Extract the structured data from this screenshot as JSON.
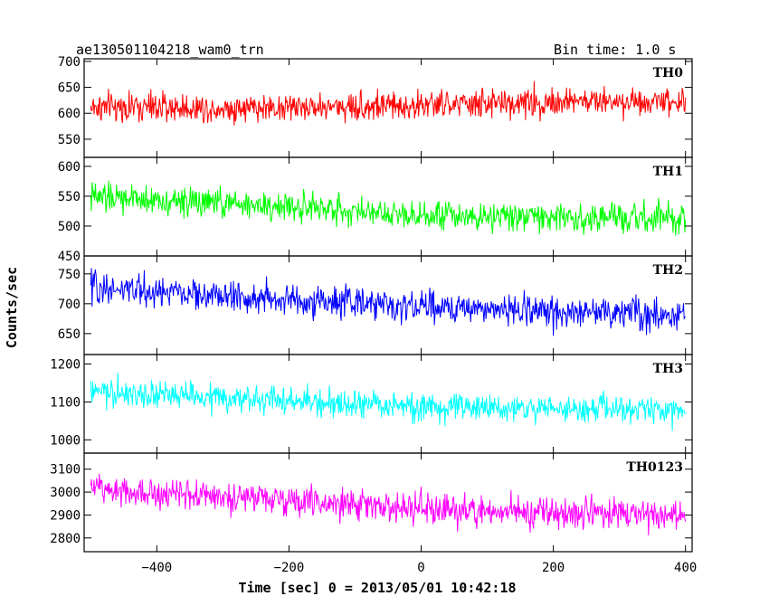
{
  "header": {
    "left_title": "ae130501104218_wam0_trn",
    "right_title": "Bin time: 1.0 s"
  },
  "chart_data": {
    "type": "line",
    "xlabel": "Time [sec] 0 = 2013/05/01 10:42:18",
    "ylabel": "Counts/sec",
    "xlim": [
      -510,
      410
    ],
    "xticks": [
      -400,
      -200,
      0,
      200,
      400
    ],
    "bin_time_s": 1.0,
    "panels": [
      {
        "name": "TH0",
        "color": "#ff0000",
        "ylim": [
          515,
          705
        ],
        "yticks": [
          550,
          600,
          650,
          700
        ],
        "trend": [
          [
            -500,
            612
          ],
          [
            -300,
            610
          ],
          [
            0,
            615
          ],
          [
            200,
            622
          ],
          [
            400,
            625
          ]
        ],
        "spread": 32
      },
      {
        "name": "TH1",
        "color": "#00ff00",
        "ylim": [
          450,
          615
        ],
        "yticks": [
          450,
          500,
          550,
          600
        ],
        "trend": [
          [
            -500,
            548
          ],
          [
            -300,
            538
          ],
          [
            0,
            520
          ],
          [
            200,
            515
          ],
          [
            400,
            510
          ]
        ],
        "spread": 28
      },
      {
        "name": "TH2",
        "color": "#0000ff",
        "ylim": [
          615,
          780
        ],
        "yticks": [
          650,
          700,
          750
        ],
        "trend": [
          [
            -500,
            728
          ],
          [
            -300,
            712
          ],
          [
            0,
            695
          ],
          [
            200,
            688
          ],
          [
            400,
            682
          ]
        ],
        "spread": 30
      },
      {
        "name": "TH3",
        "color": "#00ffff",
        "ylim": [
          965,
          1225
        ],
        "yticks": [
          1000,
          1100,
          1200
        ],
        "trend": [
          [
            -500,
            1125
          ],
          [
            -300,
            1110
          ],
          [
            0,
            1085
          ],
          [
            200,
            1082
          ],
          [
            400,
            1078
          ]
        ],
        "spread": 42
      },
      {
        "name": "TH0123",
        "color": "#ff00ff",
        "ylim": [
          2740,
          3170
        ],
        "yticks": [
          2800,
          2900,
          3000,
          3100
        ],
        "trend": [
          [
            -500,
            3020
          ],
          [
            -300,
            2980
          ],
          [
            0,
            2925
          ],
          [
            200,
            2910
          ],
          [
            400,
            2900
          ]
        ],
        "spread": 75
      }
    ]
  }
}
